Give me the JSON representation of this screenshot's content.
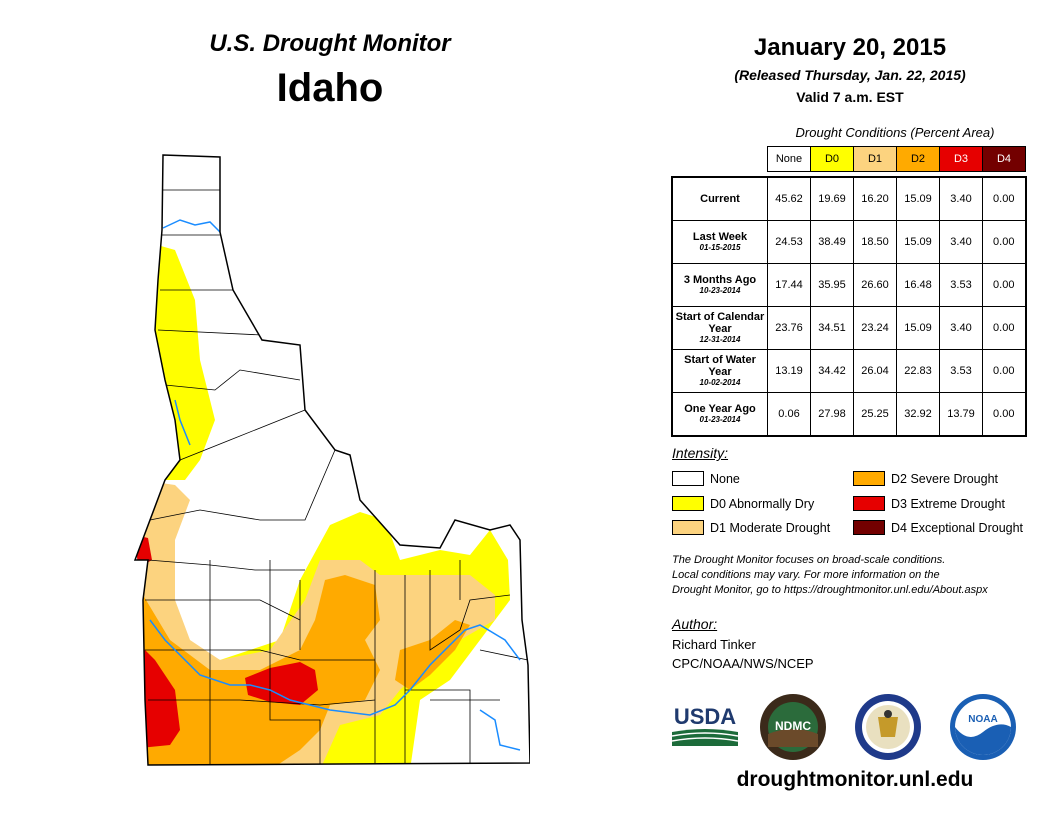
{
  "header": {
    "monitor_title": "U.S. Drought Monitor",
    "state": "Idaho",
    "date": "January 20, 2015",
    "released": "(Released Thursday, Jan. 22, 2015)",
    "valid": "Valid 7 a.m. EST"
  },
  "table": {
    "caption": "Drought Conditions (Percent Area)",
    "columns": [
      {
        "label": "None",
        "color": "#ffffff"
      },
      {
        "label": "D0",
        "color": "#ffff00"
      },
      {
        "label": "D1",
        "color": "#fcd37f"
      },
      {
        "label": "D2",
        "color": "#ffaa00"
      },
      {
        "label": "D3",
        "color": "#e60000"
      },
      {
        "label": "D4",
        "color": "#730000"
      }
    ],
    "rows": [
      {
        "label": "Current",
        "date": "",
        "values": [
          "45.62",
          "19.69",
          "16.20",
          "15.09",
          "3.40",
          "0.00"
        ]
      },
      {
        "label": "Last Week",
        "date": "01-15-2015",
        "values": [
          "24.53",
          "38.49",
          "18.50",
          "15.09",
          "3.40",
          "0.00"
        ]
      },
      {
        "label": "3 Months Ago",
        "date": "10-23-2014",
        "values": [
          "17.44",
          "35.95",
          "26.60",
          "16.48",
          "3.53",
          "0.00"
        ]
      },
      {
        "label": "Start of Calendar Year",
        "date": "12-31-2014",
        "values": [
          "23.76",
          "34.51",
          "23.24",
          "15.09",
          "3.40",
          "0.00"
        ]
      },
      {
        "label": "Start of Water Year",
        "date": "10-02-2014",
        "values": [
          "13.19",
          "34.42",
          "26.04",
          "22.83",
          "3.53",
          "0.00"
        ]
      },
      {
        "label": "One Year Ago",
        "date": "01-23-2014",
        "values": [
          "0.06",
          "27.98",
          "25.25",
          "32.92",
          "13.79",
          "0.00"
        ]
      }
    ]
  },
  "legend": {
    "title": "Intensity:",
    "items": [
      {
        "label": "None",
        "color": "#ffffff"
      },
      {
        "label": "D0 Abnormally Dry",
        "color": "#ffff00"
      },
      {
        "label": "D1 Moderate Drought",
        "color": "#fcd37f"
      },
      {
        "label": "D2 Severe Drought",
        "color": "#ffaa00"
      },
      {
        "label": "D3 Extreme Drought",
        "color": "#e60000"
      },
      {
        "label": "D4 Exceptional Drought",
        "color": "#730000"
      }
    ]
  },
  "note": {
    "line1": "The Drought Monitor focuses on broad-scale conditions.",
    "line2": "Local conditions may vary. For more information on the",
    "line3": "Drought Monitor, go to https://droughtmonitor.unl.edu/About.aspx"
  },
  "author": {
    "title": "Author:",
    "name": "Richard Tinker",
    "org": "CPC/NOAA/NWS/NCEP"
  },
  "logos": {
    "usda": "USDA",
    "ndmc": "NDMC",
    "noaa": "NOAA"
  },
  "website": "droughtmonitor.unl.edu",
  "colors": {
    "river": "#1a8cff",
    "border": "#000000"
  }
}
